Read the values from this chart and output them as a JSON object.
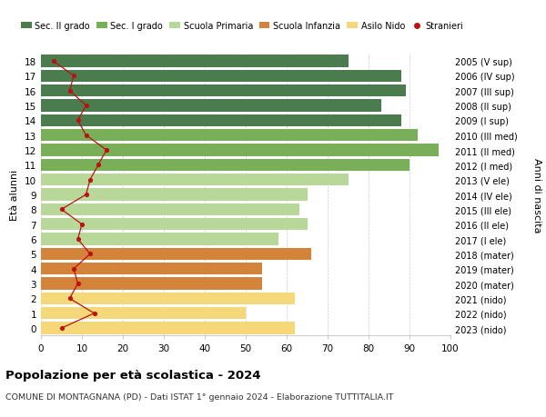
{
  "ages": [
    18,
    17,
    16,
    15,
    14,
    13,
    12,
    11,
    10,
    9,
    8,
    7,
    6,
    5,
    4,
    3,
    2,
    1,
    0
  ],
  "years_labels": [
    "2005 (V sup)",
    "2006 (IV sup)",
    "2007 (III sup)",
    "2008 (II sup)",
    "2009 (I sup)",
    "2010 (III med)",
    "2011 (II med)",
    "2012 (I med)",
    "2013 (V ele)",
    "2014 (IV ele)",
    "2015 (III ele)",
    "2016 (II ele)",
    "2017 (I ele)",
    "2018 (mater)",
    "2019 (mater)",
    "2020 (mater)",
    "2021 (nido)",
    "2022 (nido)",
    "2023 (nido)"
  ],
  "bar_values": [
    75,
    88,
    89,
    83,
    88,
    92,
    97,
    90,
    75,
    65,
    63,
    65,
    58,
    66,
    54,
    54,
    62,
    50,
    62
  ],
  "bar_colors": [
    "#4a7c4e",
    "#4a7c4e",
    "#4a7c4e",
    "#4a7c4e",
    "#4a7c4e",
    "#7aaf5a",
    "#7aaf5a",
    "#7aaf5a",
    "#b8d89a",
    "#b8d89a",
    "#b8d89a",
    "#b8d89a",
    "#b8d89a",
    "#d4843a",
    "#d4843a",
    "#d4843a",
    "#f5d87a",
    "#f5d87a",
    "#f5d87a"
  ],
  "stranieri_values": [
    3,
    8,
    7,
    11,
    9,
    11,
    16,
    14,
    12,
    11,
    5,
    10,
    9,
    12,
    8,
    9,
    7,
    13,
    5
  ],
  "legend_labels": [
    "Sec. II grado",
    "Sec. I grado",
    "Scuola Primaria",
    "Scuola Infanzia",
    "Asilo Nido",
    "Stranieri"
  ],
  "legend_colors": [
    "#4a7c4e",
    "#7aaf5a",
    "#b8d89a",
    "#d4843a",
    "#f5d87a",
    "#bb1111"
  ],
  "ylabel_left": "Età alunni",
  "ylabel_right": "Anni di nascita",
  "title": "Popolazione per età scolastica - 2024",
  "subtitle": "COMUNE DI MONTAGNANA (PD) - Dati ISTAT 1° gennaio 2024 - Elaborazione TUTTITALIA.IT",
  "xlim": [
    0,
    100
  ],
  "background_color": "#ffffff",
  "grid_color": "#cccccc",
  "stranieri_line_color": "#bb1111",
  "stranieri_dot_color": "#bb1111",
  "bar_height": 0.82
}
